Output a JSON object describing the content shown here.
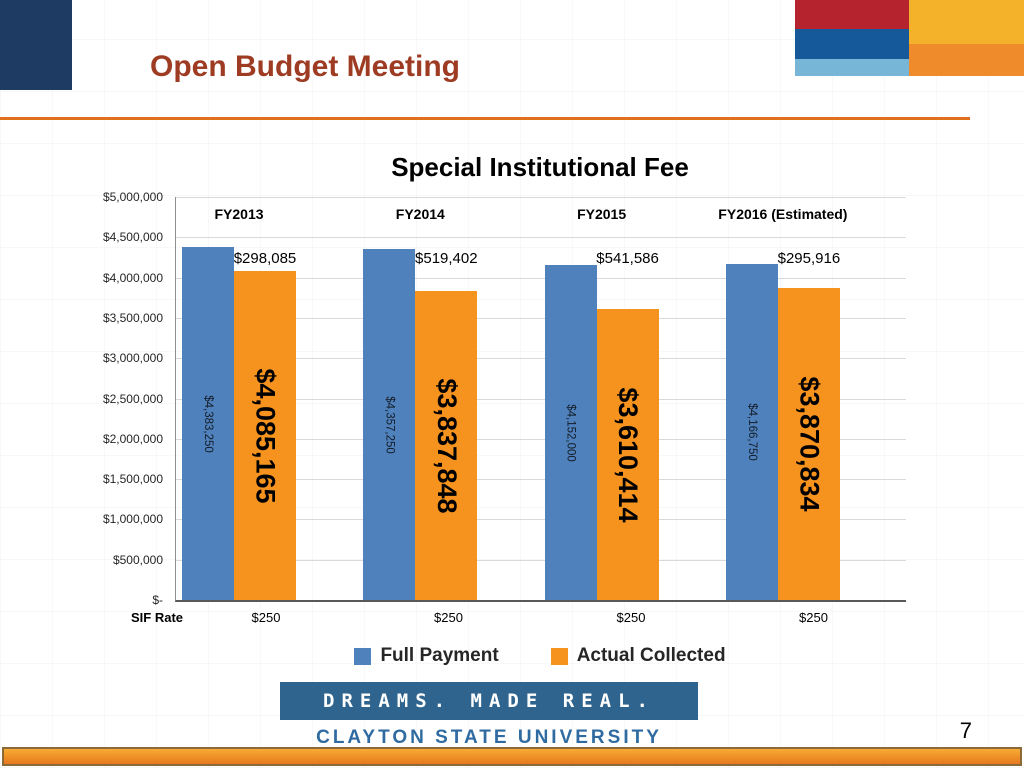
{
  "header": {
    "title": "Open Budget Meeting"
  },
  "theme": {
    "navy": "#1e3c63",
    "red": "#b5242e",
    "yellow": "#f3b229",
    "dark_blue": "#15599a",
    "light_blue": "#77b6d6",
    "orange": "#ef8b2a",
    "rule_orange": "#e0701e",
    "title_color": "#9e3b23"
  },
  "chart_data": {
    "type": "bar",
    "title": "Special Institutional Fee",
    "categories": [
      "FY2013",
      "FY2014",
      "FY2015",
      "FY2016 (Estimated)"
    ],
    "series": [
      {
        "name": "Full Payment",
        "color": "#4f81bd",
        "values": [
          4383250,
          4357250,
          4152000,
          4166750
        ],
        "labels": [
          "$4,383,250",
          "$4,357,250",
          "$4,152,000",
          "$4,166,750"
        ]
      },
      {
        "name": "Actual Collected",
        "color": "#f6931e",
        "values": [
          4085165,
          3837848,
          3610414,
          3870834
        ],
        "labels": [
          "$4,085,165",
          "$3,837,848",
          "$3,610,414",
          "$3,870,834"
        ]
      }
    ],
    "difference_labels": [
      "$298,085",
      "$519,402",
      "$541,586",
      "$295,916"
    ],
    "y_ticks": [
      "$5,000,000",
      "$4,500,000",
      "$4,000,000",
      "$3,500,000",
      "$3,000,000",
      "$2,500,000",
      "$2,000,000",
      "$1,500,000",
      "$1,000,000",
      "$500,000",
      "$-"
    ],
    "ylim": [
      0,
      5000000
    ],
    "grid": true,
    "legend_position": "bottom",
    "sif_rate": {
      "label": "SIF Rate",
      "values": [
        "$250",
        "$250",
        "$250",
        "$250"
      ]
    }
  },
  "footer": {
    "tagline": "DREAMS. MADE REAL.",
    "university": "CLAYTON STATE UNIVERSITY",
    "page_number": "7"
  }
}
